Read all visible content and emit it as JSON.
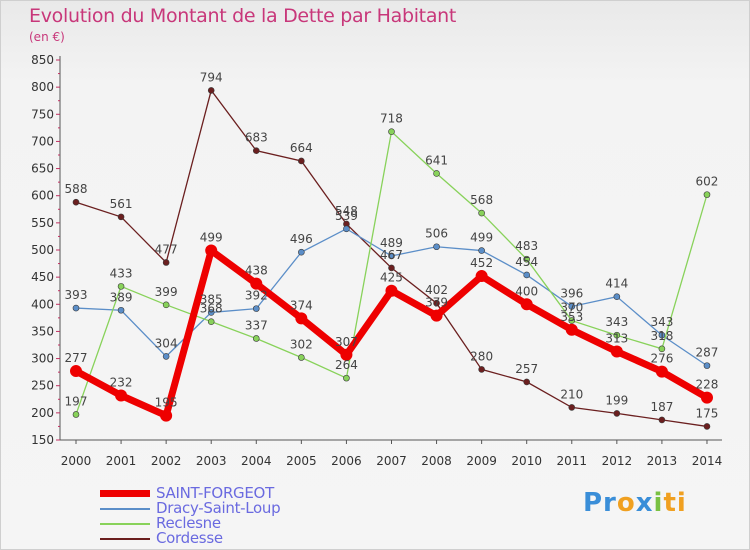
{
  "header": {
    "title": "Evolution du Montant de la Dette par Habitant",
    "unit": "(en €)"
  },
  "brand": {
    "parts": [
      {
        "text": "Pr",
        "color": "#3a8ed8"
      },
      {
        "text": "o",
        "color": "#f0a020"
      },
      {
        "text": "x",
        "color": "#3a8ed8"
      },
      {
        "text": "i",
        "color": "#79c142"
      },
      {
        "text": "ti",
        "color": "#f0a020"
      }
    ]
  },
  "chart_data": {
    "type": "line",
    "title": "Evolution du Montant de la Dette par Habitant",
    "ylabel": "(en €)",
    "xlabel": "",
    "x": [
      "2000",
      "2001",
      "2002",
      "2003",
      "2004",
      "2005",
      "2006",
      "2007",
      "2008",
      "2009",
      "2010",
      "2011",
      "2012",
      "2013",
      "2014"
    ],
    "ylim": [
      150,
      850
    ],
    "yticks": [
      150,
      200,
      250,
      300,
      350,
      400,
      450,
      500,
      550,
      600,
      650,
      700,
      750,
      800,
      850
    ],
    "grid": false,
    "legend_position": "bottom-left",
    "series": [
      {
        "name": "Cordesse",
        "color": "#6b1f1f",
        "values": [
          588,
          561,
          477,
          794,
          683,
          664,
          548,
          467,
          402,
          280,
          257,
          210,
          199,
          187,
          175
        ]
      },
      {
        "name": "Dracy-Saint-Loup",
        "color": "#5b8ec8",
        "values": [
          393,
          389,
          304,
          385,
          392,
          496,
          539,
          489,
          506,
          499,
          454,
          396,
          414,
          343,
          287
        ]
      },
      {
        "name": "Reclesne",
        "color": "#88d25a",
        "values": [
          197,
          433,
          399,
          368,
          337,
          302,
          264,
          718,
          641,
          568,
          483,
          370,
          343,
          318,
          602
        ]
      },
      {
        "name": "SAINT-FORGEOT",
        "color": "#ee0000",
        "values": [
          277,
          232,
          195,
          499,
          438,
          374,
          307,
          425,
          379,
          452,
          400,
          353,
          313,
          276,
          228
        ]
      }
    ]
  }
}
